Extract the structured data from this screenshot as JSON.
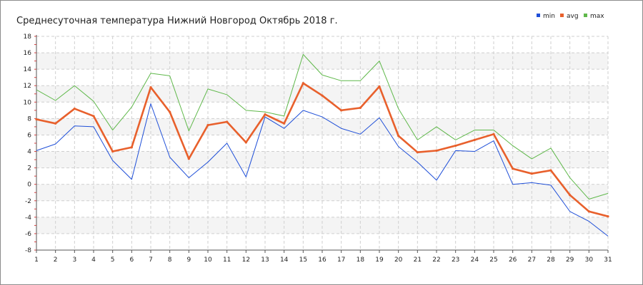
{
  "chart_data": {
    "type": "line",
    "title": "Среднесуточная температура Нижний Новгород  Октябрь 2018 г.",
    "xlabel": "",
    "ylabel": "",
    "x": [
      1,
      2,
      3,
      4,
      5,
      6,
      7,
      8,
      9,
      10,
      11,
      12,
      13,
      14,
      15,
      16,
      17,
      18,
      19,
      20,
      21,
      22,
      23,
      24,
      25,
      26,
      27,
      28,
      29,
      30,
      31
    ],
    "xlim": [
      1,
      31
    ],
    "ylim": [
      -8,
      18
    ],
    "yticks": [
      -8,
      -6,
      -4,
      -2,
      0,
      2,
      4,
      6,
      8,
      10,
      12,
      14,
      16,
      18
    ],
    "grid": true,
    "legend_position": "top-right",
    "series": [
      {
        "name": "min",
        "color": "#1f4fd8",
        "values": [
          4.1,
          4.9,
          7.1,
          7.0,
          2.9,
          0.6,
          9.8,
          3.3,
          0.8,
          2.7,
          5.0,
          0.9,
          8.2,
          6.8,
          9.0,
          8.2,
          6.8,
          6.1,
          8.1,
          4.6,
          2.7,
          0.5,
          4.1,
          4.0,
          5.3,
          0.0,
          0.2,
          -0.1,
          -3.3,
          -4.5,
          -6.3
        ]
      },
      {
        "name": "avg",
        "color": "#e8602c",
        "values": [
          7.9,
          7.4,
          9.2,
          8.3,
          4.0,
          4.5,
          11.8,
          8.8,
          3.1,
          7.2,
          7.6,
          5.1,
          8.5,
          7.4,
          12.3,
          10.8,
          9.0,
          9.3,
          11.9,
          5.9,
          3.9,
          4.1,
          4.7,
          5.4,
          6.1,
          1.9,
          1.3,
          1.7,
          -1.3,
          -3.3,
          -3.9
        ]
      },
      {
        "name": "max",
        "color": "#5fb84a",
        "values": [
          11.5,
          10.2,
          12.0,
          10.1,
          6.6,
          9.4,
          13.5,
          13.2,
          6.5,
          11.6,
          10.9,
          9.0,
          8.8,
          8.3,
          15.8,
          13.3,
          12.6,
          12.6,
          15.0,
          9.2,
          5.4,
          7.0,
          5.4,
          6.6,
          6.6,
          4.7,
          3.1,
          4.4,
          0.8,
          -1.8,
          -1.1
        ]
      }
    ]
  }
}
